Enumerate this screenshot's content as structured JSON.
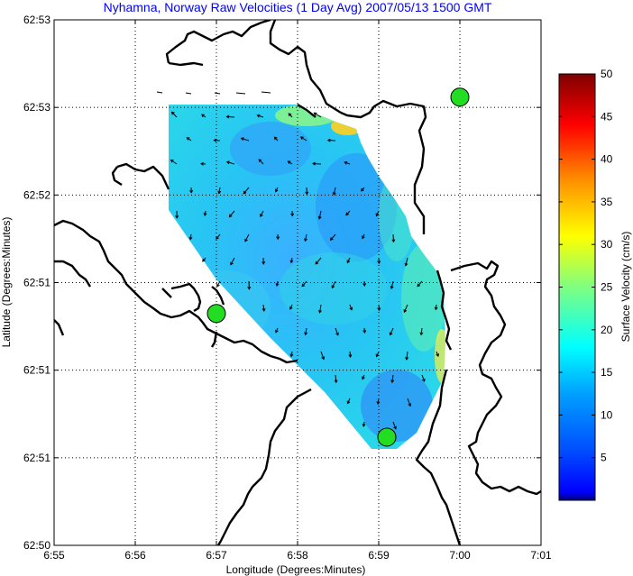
{
  "chart_data": {
    "type": "heatmap",
    "title": "Nyhamna, Norway Raw Velocities (1 Day Avg) 2007/05/13 1500 GMT",
    "xlabel": "Longitude (Degrees:Minutes)",
    "ylabel": "Latitude (Degrees:Minutes)",
    "x_ticks": [
      "6:55",
      "6:56",
      "6:57",
      "6:58",
      "6:59",
      "7:00",
      "7:01"
    ],
    "y_ticks": [
      "62:53",
      "62:53",
      "62:52",
      "62:51",
      "62:51",
      "62:51",
      "62:50"
    ],
    "grid": true,
    "colorbar": {
      "label": "Surface Velocity (cm/s)",
      "ticks": [
        "50",
        "45",
        "40",
        "35",
        "30",
        "25",
        "20",
        "15",
        "10",
        "5"
      ],
      "min": 0,
      "max": 50,
      "colormap": "jet"
    },
    "stations": [
      {
        "lon": 6.95,
        "lat": 62.505
      },
      {
        "lon": 6.985,
        "lat": 62.501
      },
      {
        "lon": 7.0,
        "lat": 62.512
      }
    ],
    "mean_speed_cm_s": 10
  }
}
